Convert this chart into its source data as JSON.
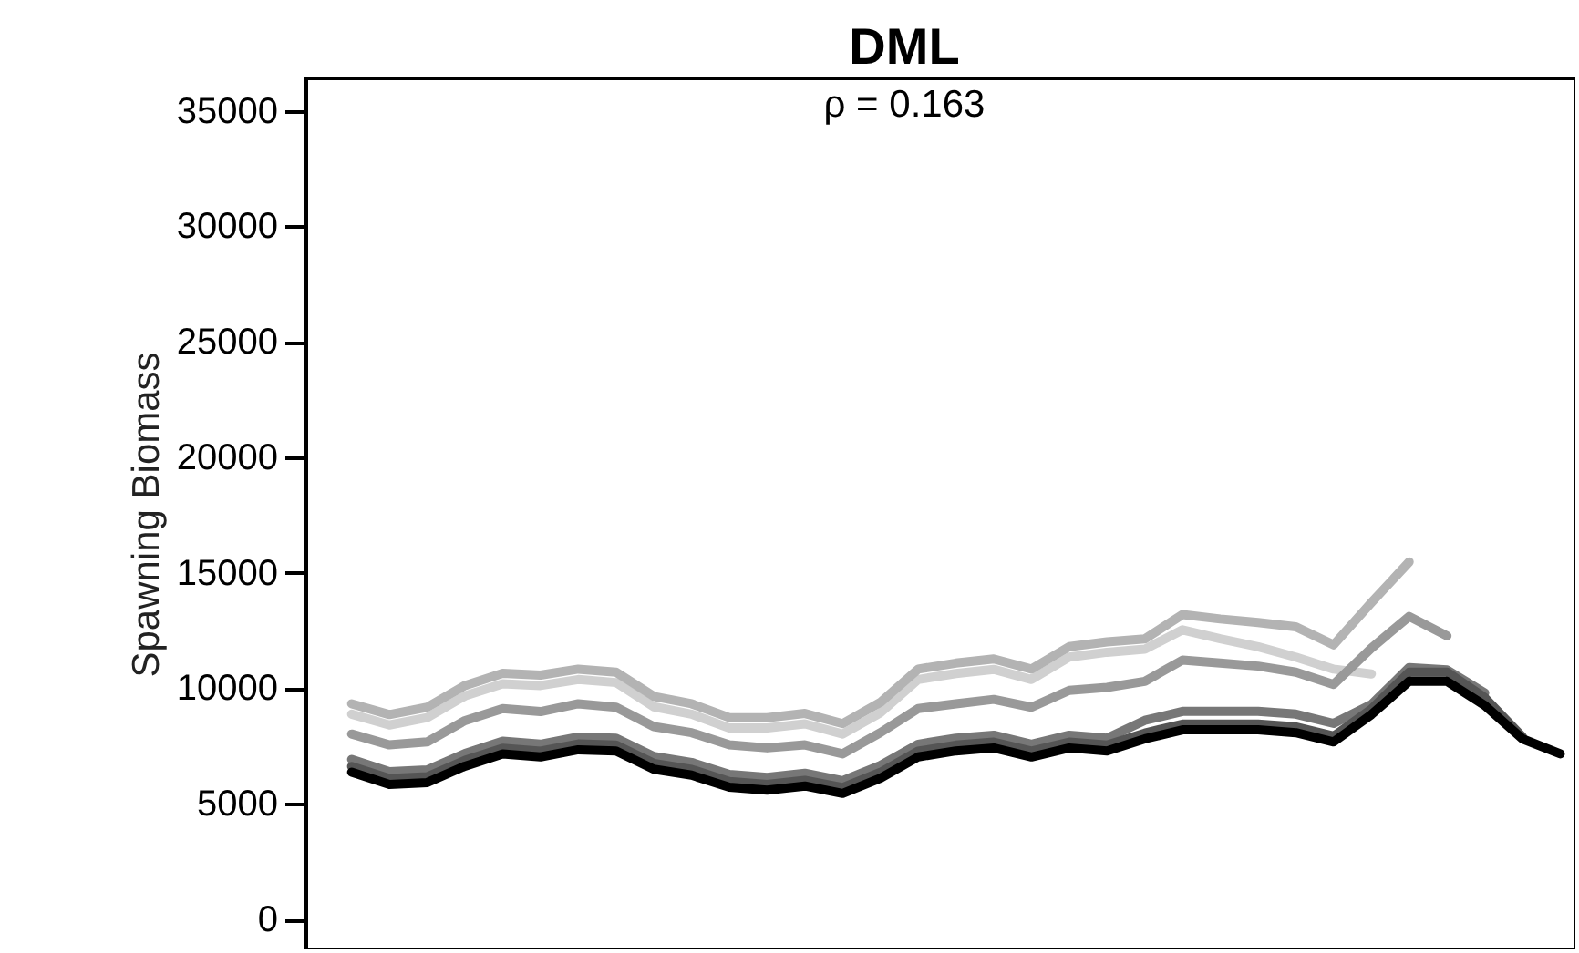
{
  "chart_data": {
    "type": "line",
    "title": "DML",
    "subtitle": "ρ = 0.163",
    "ylabel": "Spawning Biomass",
    "categories": [
      null,
      null,
      null,
      null,
      null,
      null,
      null,
      null,
      null,
      null,
      null,
      null,
      null,
      null,
      null,
      null,
      null,
      null,
      null,
      null,
      null,
      null,
      null,
      null,
      null,
      null,
      null,
      null,
      null,
      null,
      null,
      null,
      null
    ],
    "ylim": [
      -1300,
      36400
    ],
    "yticks": [
      0,
      5000,
      10000,
      15000,
      20000,
      25000,
      30000,
      35000
    ],
    "tick_labels": "y",
    "grid": false,
    "marker": "none",
    "line_style": "solid",
    "series": [
      {
        "color": "#d0d0d0",
        "values": [
          8880,
          8410,
          8730,
          9670,
          10200,
          10120,
          10380,
          10250,
          9200,
          8880,
          8280,
          8280,
          8460,
          8020,
          8940,
          10380,
          10640,
          10820,
          10380,
          11350,
          11560,
          11690,
          12530,
          12140,
          11800,
          11350,
          10830,
          10620,
          null,
          null,
          null,
          null,
          null
        ]
      },
      {
        "color": "#b3b3b3",
        "values": [
          9330,
          8860,
          9180,
          10120,
          10650,
          10570,
          10830,
          10700,
          9650,
          9330,
          8730,
          8730,
          8910,
          8470,
          9390,
          10830,
          11090,
          11270,
          10830,
          11800,
          12010,
          12140,
          13190,
          13000,
          12850,
          12660,
          11880,
          13710,
          15470,
          null,
          null,
          null,
          null
        ]
      },
      {
        "color": "#999999",
        "values": [
          8020,
          7550,
          7680,
          8600,
          9120,
          8990,
          9330,
          9180,
          8340,
          8080,
          7550,
          7420,
          7550,
          7160,
          8080,
          9120,
          9330,
          9520,
          9180,
          9910,
          10040,
          10300,
          11220,
          11090,
          10960,
          10700,
          10170,
          11740,
          13110,
          12270,
          null,
          null,
          null
        ]
      },
      {
        "color": "#777777",
        "values": [
          6920,
          6390,
          6470,
          7180,
          7710,
          7580,
          7890,
          7840,
          7050,
          6790,
          6270,
          6140,
          6320,
          6000,
          6660,
          7580,
          7840,
          7970,
          7580,
          7970,
          7840,
          8610,
          9000,
          9000,
          9000,
          8880,
          8480,
          9300,
          10900,
          10800,
          9800,
          null,
          null
        ]
      },
      {
        "color": "#555555",
        "values": [
          6620,
          6090,
          6170,
          6880,
          7410,
          7280,
          7590,
          7540,
          6750,
          6490,
          5970,
          5840,
          6020,
          5700,
          6360,
          7280,
          7540,
          7670,
          7280,
          7670,
          7540,
          8060,
          8450,
          8450,
          8450,
          8330,
          7930,
          9100,
          10700,
          10700,
          9600,
          7900,
          null
        ]
      },
      {
        "color": "#000000",
        "values": [
          6370,
          5840,
          5920,
          6630,
          7160,
          7030,
          7340,
          7290,
          6500,
          6240,
          5720,
          5590,
          5770,
          5450,
          6110,
          7030,
          7290,
          7420,
          7030,
          7420,
          7290,
          7810,
          8200,
          8200,
          8200,
          8080,
          7680,
          8860,
          10300,
          10300,
          9260,
          7810,
          7160
        ]
      }
    ]
  }
}
